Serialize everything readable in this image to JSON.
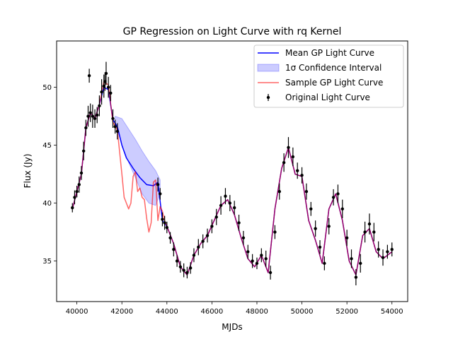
{
  "chart_data": {
    "type": "line",
    "title": "GP Regression on Light Curve with rq Kernel",
    "xlabel": "MJDs",
    "ylabel": "Flux (Jy)",
    "xlim": [
      39100,
      54700
    ],
    "ylim": [
      31.5,
      54.0
    ],
    "xticks": [
      40000,
      42000,
      44000,
      46000,
      48000,
      50000,
      52000,
      54000
    ],
    "yticks": [
      35,
      40,
      45,
      50
    ],
    "grid": false,
    "legend_position": "top-right",
    "legend": [
      {
        "label": "Mean GP Light Curve",
        "kind": "line",
        "color": "#0000ff"
      },
      {
        "label": "1σ Confidence Interval",
        "kind": "band",
        "color": "#0000ff"
      },
      {
        "label": "Sample GP Light Curve",
        "kind": "line",
        "color": "#ff0000"
      },
      {
        "label": "Original Light Curve",
        "kind": "errorbar",
        "color": "#000000"
      }
    ],
    "series": [
      {
        "name": "Mean GP Light Curve",
        "color": "#0000ff",
        "x": [
          39800,
          40000,
          40200,
          40400,
          40600,
          40800,
          41000,
          41200,
          41400,
          41600,
          41800,
          42000,
          42200,
          42500,
          42800,
          43100,
          43400,
          43600,
          43800,
          44000,
          44300,
          44600,
          44900,
          45200,
          45500,
          45800,
          46100,
          46400,
          46700,
          47000,
          47300,
          47600,
          47900,
          48200,
          48500,
          48800,
          49100,
          49400,
          49700,
          50000,
          50300,
          50600,
          50900,
          51200,
          51500,
          51800,
          52100,
          52400,
          52700,
          53000,
          53300,
          53600,
          54000
        ],
        "y": [
          39.5,
          41.0,
          42.5,
          46.5,
          47.8,
          47.3,
          48.5,
          50.0,
          49.8,
          47.2,
          46.6,
          45.0,
          43.9,
          43.0,
          42.2,
          41.6,
          41.5,
          41.8,
          38.5,
          38.0,
          36.5,
          34.5,
          33.8,
          35.5,
          36.5,
          37.2,
          38.5,
          39.8,
          40.3,
          39.0,
          37.0,
          35.2,
          34.5,
          35.5,
          34.0,
          39.5,
          43.0,
          44.8,
          42.5,
          42.3,
          38.5,
          36.8,
          34.8,
          39.5,
          40.8,
          38.5,
          35.0,
          33.8,
          37.2,
          37.8,
          35.8,
          35.2,
          35.8
        ]
      },
      {
        "name": "Sample GP Light Curve",
        "color": "#ff0000",
        "x": [
          39800,
          40000,
          40200,
          40400,
          40600,
          40800,
          41000,
          41200,
          41400,
          41600,
          41800,
          42000,
          42100,
          42200,
          42300,
          42400,
          42500,
          42600,
          42700,
          42800,
          42900,
          43000,
          43100,
          43200,
          43300,
          43400,
          43500,
          43600,
          43700,
          43800,
          43900,
          44000,
          44300,
          44600,
          44900,
          45200,
          45500,
          45800,
          46100,
          46400,
          46700,
          47000,
          47300,
          47600,
          47900,
          48200,
          48500,
          48800,
          49100,
          49400,
          49700,
          50000,
          50300,
          50600,
          50900,
          51200,
          51500,
          51800,
          52100,
          52400,
          52700,
          53000,
          53300,
          53600,
          54000
        ],
        "y": [
          39.5,
          41.0,
          42.5,
          46.5,
          47.8,
          47.3,
          48.5,
          50.5,
          50.2,
          47.0,
          46.3,
          42.5,
          40.5,
          40.0,
          39.5,
          40.0,
          42.3,
          42.7,
          41.0,
          41.3,
          40.5,
          40.3,
          38.7,
          37.5,
          38.3,
          41.8,
          42.0,
          38.5,
          39.7,
          39.3,
          38.5,
          38.0,
          36.5,
          34.5,
          33.8,
          35.5,
          36.5,
          37.2,
          38.5,
          39.8,
          40.3,
          39.0,
          37.0,
          35.2,
          34.5,
          35.5,
          34.0,
          39.5,
          43.0,
          44.8,
          42.5,
          42.3,
          38.5,
          36.8,
          34.8,
          39.5,
          40.8,
          38.5,
          35.0,
          33.8,
          37.2,
          37.8,
          35.8,
          35.2,
          35.8
        ]
      },
      {
        "name": "1σ Confidence Interval",
        "color": "#0000ff",
        "x": [
          41700,
          42000,
          42300,
          42600,
          42900,
          43200,
          43500,
          43700
        ],
        "lower": [
          47.0,
          45.0,
          43.5,
          42.2,
          40.8,
          40.0,
          39.8,
          40.8
        ],
        "upper": [
          47.5,
          47.3,
          46.4,
          45.5,
          44.5,
          43.6,
          42.8,
          42.0
        ]
      },
      {
        "name": "Original Light Curve",
        "color": "#000000",
        "x": [
          39800,
          39900,
          40000,
          40100,
          40200,
          40300,
          40400,
          40500,
          40550,
          40600,
          40700,
          40800,
          40900,
          41000,
          41100,
          41200,
          41250,
          41300,
          41400,
          41500,
          41600,
          41700,
          41800,
          43600,
          43700,
          43800,
          43900,
          44000,
          44150,
          44300,
          44450,
          44600,
          44750,
          44900,
          45050,
          45200,
          45400,
          45600,
          45800,
          46000,
          46200,
          46400,
          46600,
          46800,
          47000,
          47200,
          47400,
          47600,
          47800,
          48000,
          48200,
          48400,
          48600,
          48800,
          49000,
          49200,
          49400,
          49600,
          49800,
          50000,
          50200,
          50400,
          50600,
          50800,
          51000,
          51200,
          51400,
          51600,
          51800,
          52000,
          52200,
          52400,
          52600,
          52800,
          53000,
          53200,
          53400,
          53600,
          53800,
          54000
        ],
        "y": [
          39.6,
          40.5,
          41.0,
          41.6,
          42.6,
          44.5,
          46.5,
          47.5,
          51.0,
          47.8,
          47.5,
          47.3,
          47.6,
          48.4,
          49.6,
          50.1,
          50.5,
          51.2,
          50.0,
          49.5,
          47.3,
          46.6,
          46.2,
          41.6,
          40.8,
          38.6,
          38.3,
          37.9,
          37.0,
          36.0,
          35.0,
          34.5,
          34.2,
          34.0,
          34.4,
          35.5,
          36.2,
          36.7,
          37.2,
          38.0,
          38.8,
          39.8,
          40.6,
          40.0,
          39.6,
          38.3,
          37.0,
          35.8,
          35.0,
          34.8,
          35.5,
          35.2,
          34.0,
          37.5,
          41.0,
          43.5,
          44.8,
          44.0,
          42.8,
          42.4,
          41.0,
          39.5,
          37.8,
          36.2,
          34.8,
          38.0,
          40.5,
          40.8,
          39.5,
          37.0,
          35.2,
          33.6,
          34.8,
          37.5,
          38.2,
          37.5,
          36.0,
          35.3,
          35.8,
          36.0
        ],
        "yerr": [
          0.4,
          0.6,
          0.5,
          0.7,
          0.6,
          0.8,
          0.7,
          0.9,
          0.6,
          0.8,
          1.0,
          0.8,
          0.7,
          0.9,
          1.1,
          1.0,
          0.8,
          1.0,
          0.9,
          0.7,
          0.8,
          0.6,
          0.7,
          0.6,
          0.5,
          0.6,
          0.6,
          0.5,
          0.5,
          0.6,
          0.5,
          0.5,
          0.6,
          0.5,
          0.5,
          0.6,
          0.7,
          0.6,
          0.6,
          0.6,
          0.7,
          0.8,
          0.7,
          0.7,
          0.6,
          0.7,
          0.6,
          0.6,
          0.6,
          0.5,
          0.6,
          0.7,
          0.6,
          0.6,
          0.7,
          0.8,
          0.9,
          0.8,
          0.7,
          0.7,
          0.7,
          0.6,
          0.7,
          0.6,
          0.6,
          0.7,
          0.7,
          0.8,
          0.8,
          0.7,
          0.8,
          0.7,
          0.8,
          0.9,
          0.9,
          0.8,
          0.7,
          0.7,
          0.6,
          0.6
        ]
      }
    ]
  }
}
